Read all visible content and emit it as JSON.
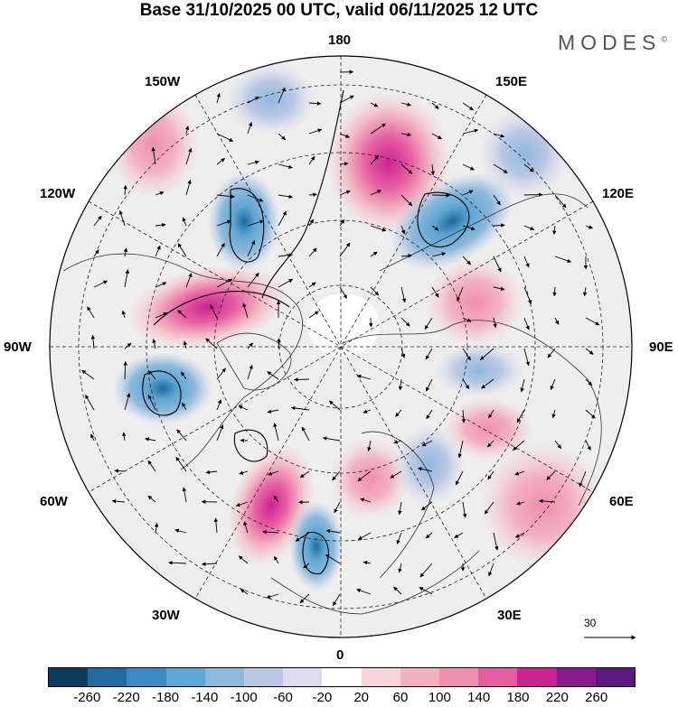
{
  "title": "Base 31/10/2025 00 UTC, valid 06/11/2025 12 UTC",
  "brand": "MODES",
  "brand_mark": "©",
  "longitude_labels": {
    "top": "180",
    "bottom": "0",
    "left": "90W",
    "right": "90E",
    "upper_left_1": "150W",
    "upper_left_2": "120W",
    "upper_right_1": "150E",
    "upper_right_2": "120E",
    "lower_left_1": "60W",
    "lower_left_2": "30W",
    "lower_right_1": "60E",
    "lower_right_2": "30E"
  },
  "wind_reference": "30",
  "colorbar": {
    "colors": [
      "#0c3d5e",
      "#1f6a9e",
      "#3a89c2",
      "#5ea6d3",
      "#8eb9dd",
      "#b9c8e4",
      "#dcdcee",
      "#ffffff",
      "#f6d3d7",
      "#f3b2c0",
      "#ef8fb0",
      "#e65ea2",
      "#c92492",
      "#8a1a8c",
      "#5c1a80"
    ],
    "tick_labels": [
      "-260",
      "-220",
      "-180",
      "-140",
      "-100",
      "-60",
      "-20",
      "20",
      "60",
      "100",
      "140",
      "180",
      "220",
      "260"
    ]
  }
}
